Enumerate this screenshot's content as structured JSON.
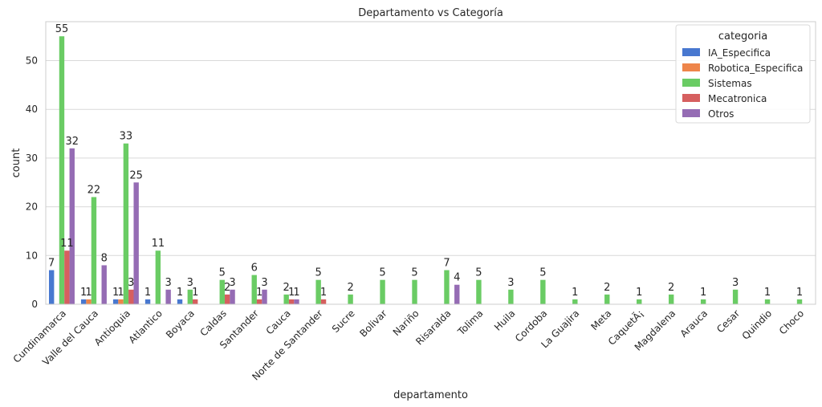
{
  "chart_data": {
    "type": "bar",
    "title": "Departamento vs Categoría",
    "xlabel": "departamento",
    "ylabel": "count",
    "ylim": [
      0,
      58
    ],
    "yticks": [
      0,
      10,
      20,
      30,
      40,
      50
    ],
    "grid": true,
    "legend_title": "categoria",
    "legend_position": "top-right",
    "categories": [
      "Cundinamarca",
      "Valle del Cauca",
      "Antioquia",
      "Atlantico",
      "Boyaca",
      "Caldas",
      "Santander",
      "Cauca",
      "Norte de Santander",
      "Sucre",
      "Bolivar",
      "Nariño",
      "Risaralda",
      "Tolima",
      "Huila",
      "Cordoba",
      "La Guajira",
      "Meta",
      "CaquetÃ¡",
      "Magdalena",
      "Arauca",
      "Cesar",
      "Quindio",
      "Choco"
    ],
    "series": [
      {
        "name": "IA_Especifica",
        "color": "#4878d0",
        "values": [
          7,
          1,
          1,
          1,
          1,
          null,
          null,
          null,
          null,
          null,
          null,
          null,
          null,
          null,
          null,
          null,
          null,
          null,
          null,
          null,
          null,
          null,
          null,
          null
        ]
      },
      {
        "name": "Robotica_Especifica",
        "color": "#ee854a",
        "values": [
          null,
          1,
          1,
          null,
          null,
          null,
          null,
          null,
          null,
          null,
          null,
          null,
          null,
          null,
          null,
          null,
          null,
          null,
          null,
          null,
          null,
          null,
          null,
          null
        ]
      },
      {
        "name": "Sistemas",
        "color": "#6acc64",
        "values": [
          55,
          22,
          33,
          11,
          3,
          5,
          6,
          2,
          5,
          2,
          5,
          5,
          7,
          5,
          3,
          5,
          1,
          2,
          1,
          2,
          1,
          3,
          1,
          1
        ]
      },
      {
        "name": "Mecatronica",
        "color": "#d65f5f",
        "values": [
          11,
          null,
          3,
          null,
          1,
          2,
          1,
          1,
          1,
          null,
          null,
          null,
          null,
          null,
          null,
          null,
          null,
          null,
          null,
          null,
          null,
          null,
          null,
          null
        ]
      },
      {
        "name": "Otros",
        "color": "#956cb4",
        "values": [
          32,
          8,
          25,
          3,
          null,
          3,
          3,
          1,
          null,
          null,
          null,
          null,
          4,
          null,
          null,
          null,
          null,
          null,
          null,
          null,
          null,
          null,
          null,
          null
        ]
      }
    ]
  }
}
